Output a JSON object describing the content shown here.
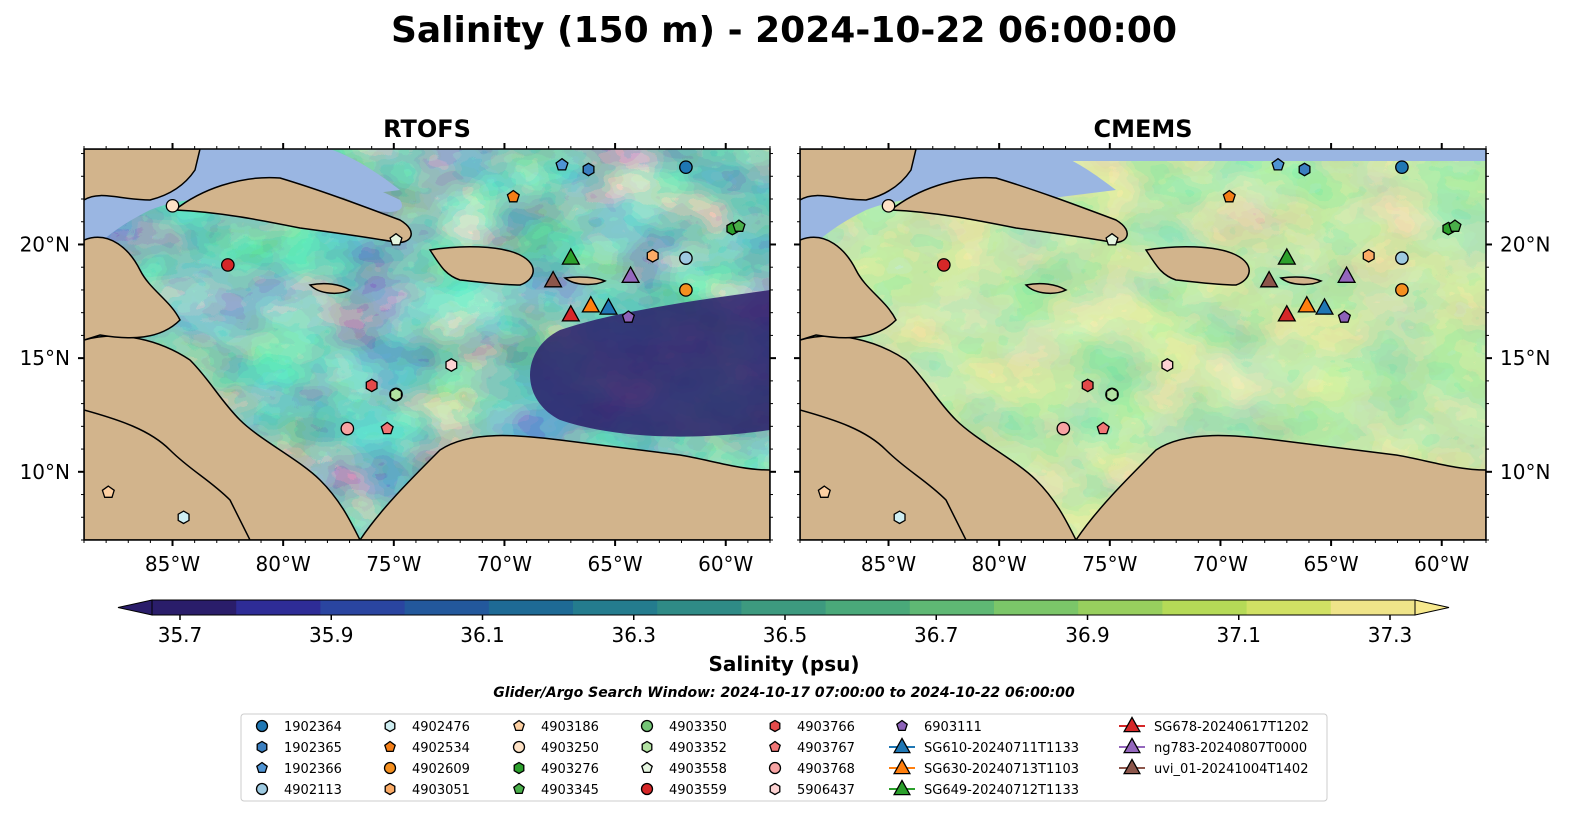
{
  "figure": {
    "suptitle": "Salinity (150 m) - 2024-10-22 06:00:00",
    "colorbar_label": "Salinity (psu)",
    "colorbar_ticks": [
      "35.7",
      "35.9",
      "36.1",
      "36.3",
      "36.5",
      "36.7",
      "36.9",
      "37.1",
      "37.3"
    ],
    "search_window": "Glider/Argo Search Window: 2024-10-17 07:00:00 to 2024-10-22 06:00:00"
  },
  "chart_data": {
    "type": "heatmap",
    "variable": "Salinity (150 m)",
    "time": "2024-10-22 06:00:00",
    "units": "psu",
    "colorbar": {
      "min": 35.7,
      "max": 37.3,
      "step": 0.1,
      "extend": "both",
      "colors": [
        "#2a1d6a",
        "#2e2c96",
        "#2a45a0",
        "#23589c",
        "#1e6a95",
        "#247c8e",
        "#2f8b86",
        "#3d9a7f",
        "#4aa97a",
        "#5fb874",
        "#7bc669",
        "#98cf5e",
        "#b5da57",
        "#d1e164",
        "#efe489"
      ],
      "colormap": "haline"
    },
    "xlim": [
      -89,
      -58
    ],
    "ylim": [
      7,
      24.2
    ],
    "xticks": [
      -85,
      -80,
      -75,
      -70,
      -65,
      -60
    ],
    "xtick_labels": [
      "85°W",
      "80°W",
      "75°W",
      "70°W",
      "65°W",
      "60°W"
    ],
    "yticks": [
      10,
      15,
      20
    ],
    "ytick_labels": [
      "10°N",
      "15°N",
      "20°N"
    ],
    "panels": [
      {
        "title": "RTOFS",
        "model": "RTOFS"
      },
      {
        "title": "CMEMS",
        "model": "CMEMS"
      }
    ],
    "series": [
      {
        "name": "1902364",
        "marker": "circle",
        "color": "#1f77b4",
        "lon": -61.8,
        "lat": 23.4
      },
      {
        "name": "1902365",
        "marker": "hexagon",
        "color": "#3b7fc0",
        "lon": -66.2,
        "lat": 23.3
      },
      {
        "name": "1902366",
        "marker": "pentagon",
        "color": "#4f94d4",
        "lon": -67.4,
        "lat": 23.5
      },
      {
        "name": "4902113",
        "marker": "circle",
        "color": "#9ecae1",
        "lon": -61.8,
        "lat": 19.4
      },
      {
        "name": "4902476",
        "marker": "hexagon",
        "color": "#cfeef2",
        "lon": -84.5,
        "lat": 8.0
      },
      {
        "name": "4902534",
        "marker": "pentagon",
        "color": "#f47e17",
        "lon": -69.6,
        "lat": 22.1
      },
      {
        "name": "4902609",
        "marker": "circle",
        "color": "#f48f1f",
        "lon": -61.8,
        "lat": 18.0
      },
      {
        "name": "4903051",
        "marker": "hexagon",
        "color": "#fbab66",
        "lon": -63.3,
        "lat": 19.5
      },
      {
        "name": "4903186",
        "marker": "pentagon",
        "color": "#fdd0a2",
        "lon": -87.9,
        "lat": 9.1
      },
      {
        "name": "4903250",
        "marker": "circle",
        "color": "#fee2c6",
        "lon": -85.0,
        "lat": 21.7
      },
      {
        "name": "4903276",
        "marker": "hexagon",
        "color": "#2ca02c",
        "lon": -59.7,
        "lat": 20.7
      },
      {
        "name": "4903345",
        "marker": "pentagon",
        "color": "#4aaf4a",
        "lon": -59.4,
        "lat": 20.8
      },
      {
        "name": "4903350",
        "marker": "circle",
        "color": "#74c476",
        "lon": -74.9,
        "lat": 13.4
      },
      {
        "name": "4903352",
        "marker": "hexagon",
        "color": "#b2e2a2",
        "lon": -74.9,
        "lat": 13.4
      },
      {
        "name": "4903558",
        "marker": "pentagon",
        "color": "#e5f5e0",
        "lon": -74.9,
        "lat": 20.2
      },
      {
        "name": "4903559",
        "marker": "circle",
        "color": "#d62728",
        "lon": -82.5,
        "lat": 19.1
      },
      {
        "name": "4903766",
        "marker": "hexagon",
        "color": "#e34a4a",
        "lon": -76.0,
        "lat": 13.8
      },
      {
        "name": "4903767",
        "marker": "pentagon",
        "color": "#f17676",
        "lon": -75.3,
        "lat": 11.9
      },
      {
        "name": "4903768",
        "marker": "circle",
        "color": "#f7a3a3",
        "lon": -77.1,
        "lat": 11.9
      },
      {
        "name": "5906437",
        "marker": "hexagon",
        "color": "#fcd2d2",
        "lon": -72.4,
        "lat": 14.7
      },
      {
        "name": "6903111",
        "marker": "pentagon",
        "color": "#8c62b8",
        "lon": -64.4,
        "lat": 16.8
      },
      {
        "name": "SG610-20240711T1133",
        "marker": "triangle",
        "color": "#1f77b4",
        "track_color": "#1f77b4",
        "lon": -65.3,
        "lat": 17.2
      },
      {
        "name": "SG630-20240713T1103",
        "marker": "triangle",
        "color": "#ff7f0e",
        "track_color": "#ff7f0e",
        "lon": -66.1,
        "lat": 17.3
      },
      {
        "name": "SG649-20240712T1133",
        "marker": "triangle",
        "color": "#2ca02c",
        "track_color": "#2ca02c",
        "lon": -67.0,
        "lat": 19.4
      },
      {
        "name": "SG678-20240617T1202",
        "marker": "triangle",
        "color": "#d62728",
        "track_color": "#d62728",
        "lon": -67.0,
        "lat": 16.9
      },
      {
        "name": "ng783-20240807T0000",
        "marker": "triangle",
        "color": "#9467bd",
        "track_color": "#9467bd",
        "lon": -64.3,
        "lat": 18.6
      },
      {
        "name": "uvi_01-20241004T1402",
        "marker": "triangle",
        "color": "#8c564b",
        "track_color": "#8c564b",
        "lon": -67.8,
        "lat": 18.4
      }
    ]
  }
}
